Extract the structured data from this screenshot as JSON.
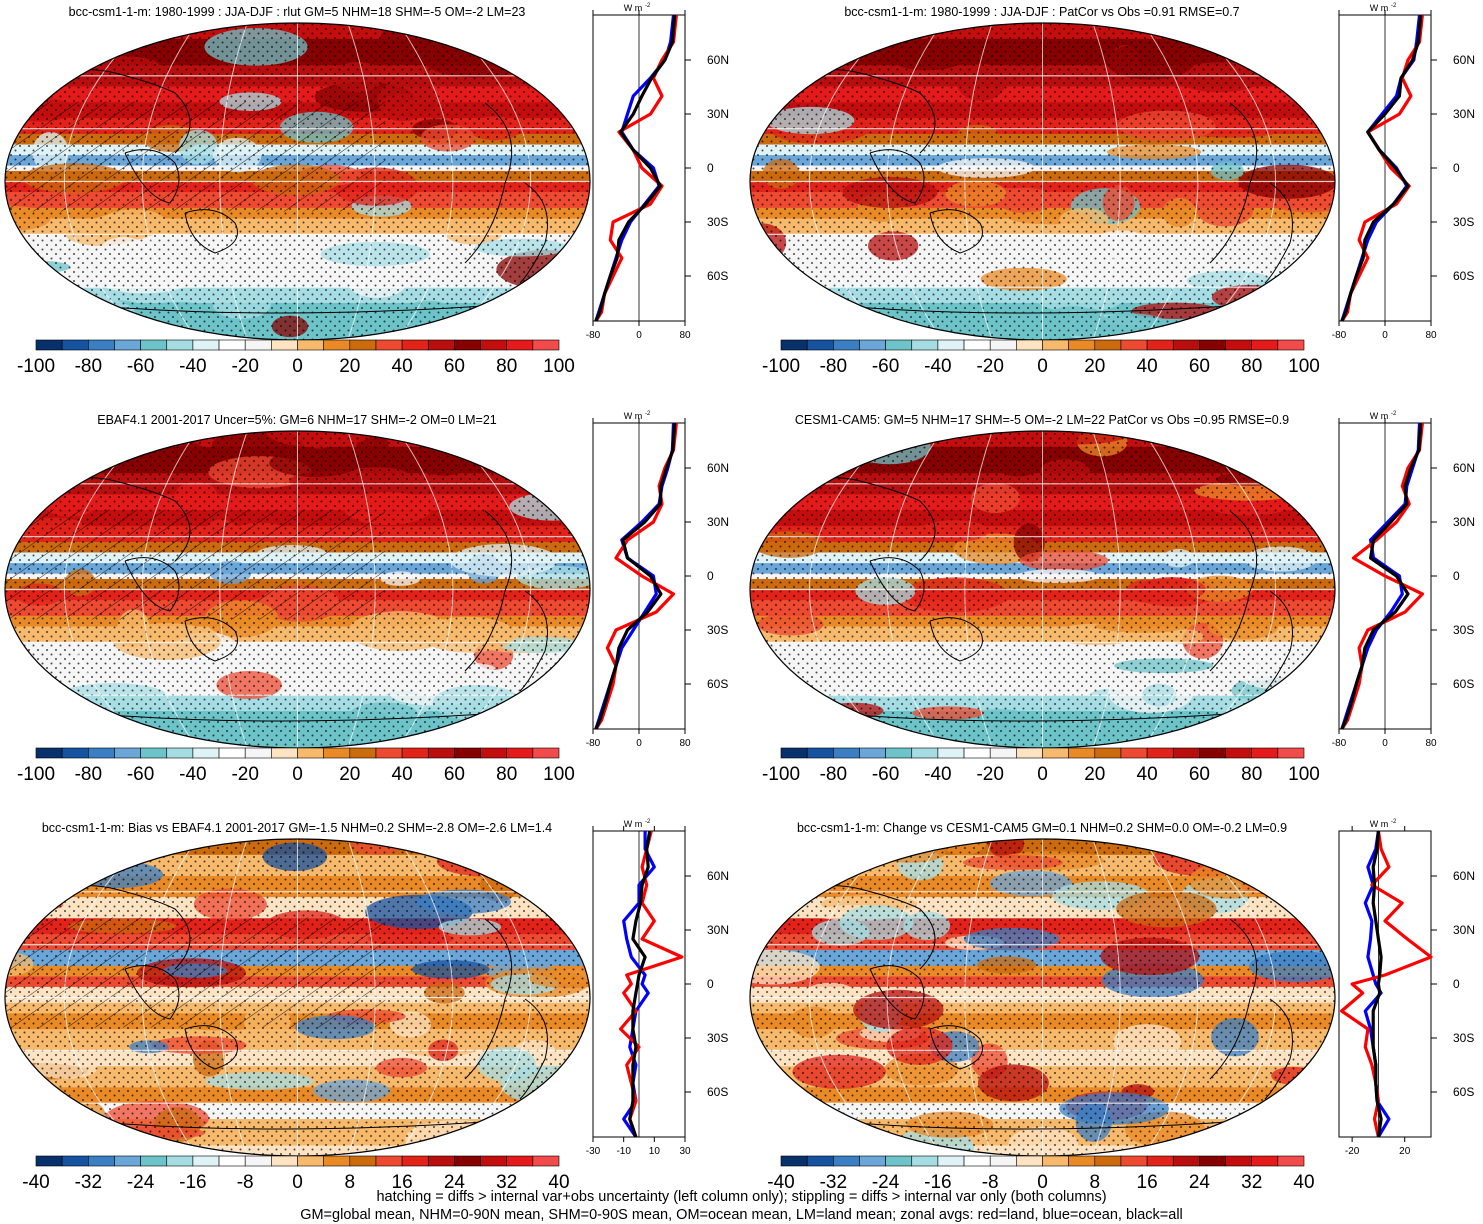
{
  "colors": {
    "palette": [
      "#08306b",
      "#1552a0",
      "#3a7fc4",
      "#6ba6d9",
      "#6cc3c8",
      "#a6dde4",
      "#dff2f5",
      "#ffffff",
      "#f5f5f5",
      "#fde3c2",
      "#f7b96c",
      "#e98a26",
      "#cc6a0e",
      "#ee4a32",
      "#e2231a",
      "#b80e0e",
      "#870000",
      "#c40d0d",
      "#e51a1a",
      "#f14b4b",
      "#21619b"
    ],
    "land": "#ff0000",
    "ocean": "#0000ff",
    "all": "#000000"
  },
  "colorbars": {
    "standard": [
      "-100",
      "-80",
      "-60",
      "-40",
      "-20",
      "0",
      "20",
      "40",
      "60",
      "80",
      "100"
    ],
    "bias": [
      "-40",
      "-32",
      "-24",
      "-16",
      "-8",
      "0",
      "8",
      "16",
      "24",
      "32",
      "40"
    ]
  },
  "chart_data": [
    {
      "type": "heatmap",
      "title": "bcc-csm1-1-m: 1980-1999 : JJA-DJF : rlut GM=5 NHM=18 SHM=-5 OM=-2 LM=23",
      "colorbar": "standard",
      "hatching": true,
      "zonal": {
        "unit_label": "W m",
        "unit_exp": "-2",
        "xlim": [
          -80,
          80
        ],
        "xticks": [
          "-80",
          "0",
          "80"
        ],
        "yticks": [
          "60N",
          "30N",
          "0",
          "30S",
          "60S"
        ],
        "lat": [
          85,
          70,
          60,
          50,
          40,
          30,
          20,
          10,
          0,
          -10,
          -20,
          -30,
          -40,
          -50,
          -60,
          -70,
          -80,
          -85
        ],
        "land": [
          65,
          60,
          40,
          25,
          40,
          20,
          -35,
          -10,
          5,
          40,
          20,
          -45,
          -50,
          -30,
          -45,
          -60,
          -65,
          -75
        ],
        "ocean": [
          60,
          55,
          45,
          20,
          -10,
          -20,
          -30,
          -10,
          25,
          35,
          10,
          -15,
          -30,
          -40,
          -50,
          -60,
          -70,
          -75
        ],
        "all": [
          62,
          58,
          45,
          22,
          5,
          -10,
          -32,
          -10,
          20,
          37,
          12,
          -18,
          -35,
          -38,
          -50,
          -60,
          -68,
          -75
        ]
      }
    },
    {
      "type": "heatmap",
      "title": "bcc-csm1-1-m: 1980-1999 : JJA-DJF : PatCor vs Obs =0.91 RMSE=0.7",
      "colorbar": "standard",
      "hatching": false,
      "zonal": {
        "unit_label": "W m",
        "unit_exp": "-2",
        "xlim": [
          -80,
          80
        ],
        "xticks": [
          "-80",
          "0",
          "80"
        ],
        "yticks": [
          "60N",
          "30N",
          "0",
          "30S",
          "60S"
        ],
        "lat": [
          85,
          70,
          60,
          50,
          40,
          30,
          20,
          10,
          0,
          -10,
          -20,
          -30,
          -40,
          -50,
          -60,
          -70,
          -80,
          -85
        ],
        "land": [
          65,
          60,
          40,
          30,
          45,
          25,
          -30,
          -10,
          10,
          42,
          20,
          -35,
          -45,
          -30,
          -45,
          -60,
          -65,
          -75
        ],
        "ocean": [
          60,
          55,
          50,
          28,
          20,
          -5,
          -30,
          -10,
          20,
          38,
          15,
          -15,
          -30,
          -40,
          -50,
          -60,
          -70,
          -75
        ],
        "all": [
          62,
          58,
          48,
          28,
          25,
          0,
          -30,
          -10,
          18,
          40,
          15,
          -20,
          -35,
          -38,
          -50,
          -60,
          -68,
          -75
        ]
      }
    },
    {
      "type": "heatmap",
      "title": "EBAF4.1 2001-2017 Uncer=5%: GM=6 NHM=17 SHM=-2 OM=0 LM=21",
      "colorbar": "standard",
      "hatching": true,
      "zonal": {
        "unit_label": "W m",
        "unit_exp": "-2",
        "xlim": [
          -80,
          80
        ],
        "xticks": [
          "-80",
          "0",
          "80"
        ],
        "yticks": [
          "60N",
          "30N",
          "0",
          "30S",
          "60S"
        ],
        "lat": [
          85,
          70,
          60,
          50,
          40,
          30,
          20,
          10,
          0,
          -10,
          -20,
          -30,
          -40,
          -50,
          -60,
          -70,
          -80,
          -85
        ],
        "land": [
          65,
          60,
          45,
          35,
          40,
          25,
          -20,
          -40,
          5,
          60,
          30,
          -40,
          -55,
          -40,
          -45,
          -55,
          -65,
          -75
        ],
        "ocean": [
          60,
          58,
          50,
          40,
          35,
          5,
          -30,
          -20,
          25,
          30,
          10,
          -10,
          -30,
          -40,
          -50,
          -60,
          -70,
          -75
        ],
        "all": [
          62,
          59,
          48,
          38,
          37,
          10,
          -28,
          -20,
          20,
          38,
          15,
          -20,
          -35,
          -40,
          -50,
          -58,
          -68,
          -75
        ]
      }
    },
    {
      "type": "heatmap",
      "title": "CESM1-CAM5: GM=5 NHM=17 SHM=-5 OM=-2 LM=22 PatCor vs Obs =0.95 RMSE=0.9",
      "colorbar": "standard",
      "hatching": false,
      "zonal": {
        "unit_label": "W m",
        "unit_exp": "-2",
        "xlim": [
          -80,
          80
        ],
        "xticks": [
          "-80",
          "0",
          "80"
        ],
        "yticks": [
          "60N",
          "30N",
          "0",
          "30S",
          "60S"
        ],
        "lat": [
          85,
          70,
          60,
          50,
          40,
          30,
          20,
          10,
          0,
          -10,
          -20,
          -30,
          -40,
          -50,
          -60,
          -70,
          -80,
          -85
        ],
        "land": [
          65,
          60,
          40,
          30,
          42,
          20,
          -15,
          -55,
          0,
          65,
          35,
          -30,
          -45,
          -40,
          -45,
          -55,
          -65,
          -75
        ],
        "ocean": [
          60,
          58,
          48,
          38,
          35,
          5,
          -25,
          -20,
          25,
          30,
          10,
          -15,
          -30,
          -40,
          -50,
          -60,
          -70,
          -75
        ],
        "all": [
          62,
          59,
          45,
          35,
          38,
          10,
          -20,
          -25,
          20,
          40,
          18,
          -20,
          -35,
          -40,
          -50,
          -58,
          -68,
          -75
        ]
      }
    },
    {
      "type": "heatmap",
      "title": "bcc-csm1-1-m: Bias vs EBAF4.1 2001-2017 GM=-1.5 NHM=0.2 SHM=-2.8 OM=-2.6 LM=1.4",
      "colorbar": "bias",
      "hatching": true,
      "zonal": {
        "unit_label": "W m",
        "unit_exp": "-2",
        "xlim": [
          -30,
          30
        ],
        "xticks": [
          "-30",
          "-10",
          "10",
          "30"
        ],
        "yticks": [
          "60N",
          "30N",
          "0",
          "30S",
          "60S"
        ],
        "lat": [
          85,
          75,
          65,
          55,
          45,
          35,
          25,
          15,
          5,
          0,
          -5,
          -15,
          -25,
          -35,
          -45,
          -55,
          -65,
          -75,
          -85
        ],
        "land": [
          8,
          5,
          2,
          5,
          2,
          10,
          2,
          28,
          -8,
          -5,
          -10,
          -2,
          -12,
          0,
          -8,
          -5,
          -2,
          -6,
          -2
        ],
        "ocean": [
          4,
          4,
          10,
          0,
          0,
          -10,
          -8,
          -5,
          4,
          2,
          6,
          -2,
          -4,
          -6,
          -2,
          -4,
          -2,
          -10,
          -2
        ],
        "all": [
          7,
          5,
          6,
          2,
          1,
          -2,
          -4,
          4,
          0,
          -1,
          -2,
          -4,
          -4,
          -2,
          -4,
          -4,
          -4,
          -6,
          -2
        ]
      }
    },
    {
      "type": "heatmap",
      "title": "bcc-csm1-1-m: Change vs CESM1-CAM5 GM=0.1 NHM=0.2 SHM=0.0 OM=-0.2 LM=0.9",
      "colorbar": "bias",
      "hatching": false,
      "zonal": {
        "unit_label": "W m",
        "unit_exp": "-2",
        "xlim": [
          -30,
          40
        ],
        "xticks": [
          "-20",
          "20"
        ],
        "yticks": [
          "60N",
          "30N",
          "0",
          "30S",
          "60S"
        ],
        "lat": [
          85,
          75,
          65,
          55,
          45,
          35,
          25,
          15,
          5,
          0,
          -5,
          -15,
          -25,
          -35,
          -45,
          -55,
          -65,
          -75,
          -85
        ],
        "land": [
          0,
          2,
          8,
          -5,
          18,
          5,
          22,
          40,
          5,
          -20,
          -12,
          -28,
          -8,
          -10,
          -5,
          -2,
          0,
          -3,
          0
        ],
        "ocean": [
          0,
          -2,
          -8,
          -4,
          -10,
          -5,
          -6,
          -8,
          -4,
          -2,
          2,
          -10,
          -6,
          -4,
          -2,
          -2,
          -1,
          8,
          0
        ],
        "all": [
          0,
          -1,
          -4,
          -3,
          -4,
          -2,
          0,
          2,
          1,
          0,
          1,
          -4,
          -4,
          -4,
          -2,
          -2,
          -1,
          2,
          0
        ]
      }
    }
  ],
  "footnote": {
    "line1": "hatching = diffs > internal var+obs uncertainty (left column only); stippling = diffs > internal var only (both columns)",
    "line2": "GM=global mean, NHM=0-90N mean, SHM=0-90S mean, OM=ocean mean, LM=land mean; zonal avgs: red=land, blue=ocean, black=all"
  }
}
